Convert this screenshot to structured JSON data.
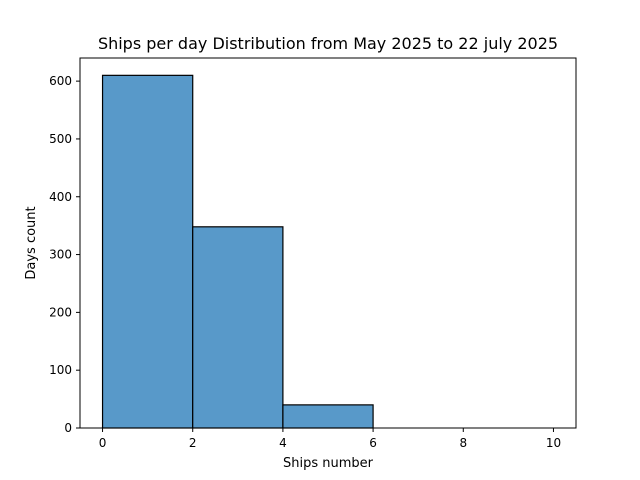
{
  "chart_data": {
    "type": "bar",
    "title": "Ships per day Distribution from May 2025 to 22 july 2025",
    "xlabel": "Ships number",
    "ylabel": "Days count",
    "bins": [
      {
        "start": 0,
        "end": 2,
        "value": 610
      },
      {
        "start": 2,
        "end": 4,
        "value": 348
      },
      {
        "start": 4,
        "end": 6,
        "value": 40
      }
    ],
    "xlim": [
      -0.5,
      10.5
    ],
    "ylim": [
      0,
      640
    ],
    "xticks": [
      0,
      2,
      4,
      6,
      8,
      10
    ],
    "yticks": [
      0,
      100,
      200,
      300,
      400,
      500,
      600
    ],
    "grid": false,
    "legend": "none",
    "bar_color": "#5899c9",
    "edge_color": "#000000"
  }
}
